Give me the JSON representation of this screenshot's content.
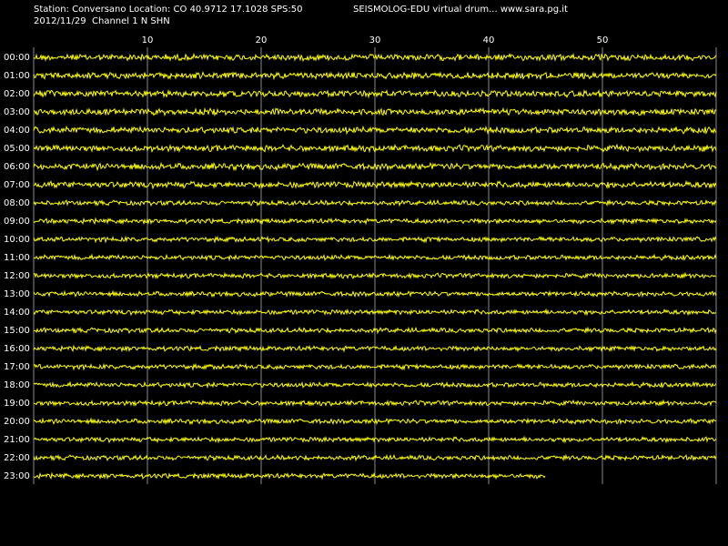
{
  "chart_data": {
    "type": "helicorder",
    "header": {
      "station": "Station: Conversano Location: CO 40.9712 17.1028 SPS:50",
      "source": "SEISMOLOG-EDU virtual drum... www.sara.pg.it",
      "date_channel": "2012/11/29  Channel 1 N SHN"
    },
    "xlim": [
      0,
      60
    ],
    "xticks": [
      10,
      20,
      30,
      40,
      50
    ],
    "rows": [
      "00:00",
      "01:00",
      "02:00",
      "03:00",
      "04:00",
      "05:00",
      "06:00",
      "07:00",
      "08:00",
      "09:00",
      "10:00",
      "11:00",
      "12:00",
      "13:00",
      "14:00",
      "15:00",
      "16:00",
      "17:00",
      "18:00",
      "19:00",
      "20:00",
      "21:00",
      "22:00",
      "23:00"
    ],
    "data_end": 45,
    "color": "#ffff00",
    "grid": true
  }
}
